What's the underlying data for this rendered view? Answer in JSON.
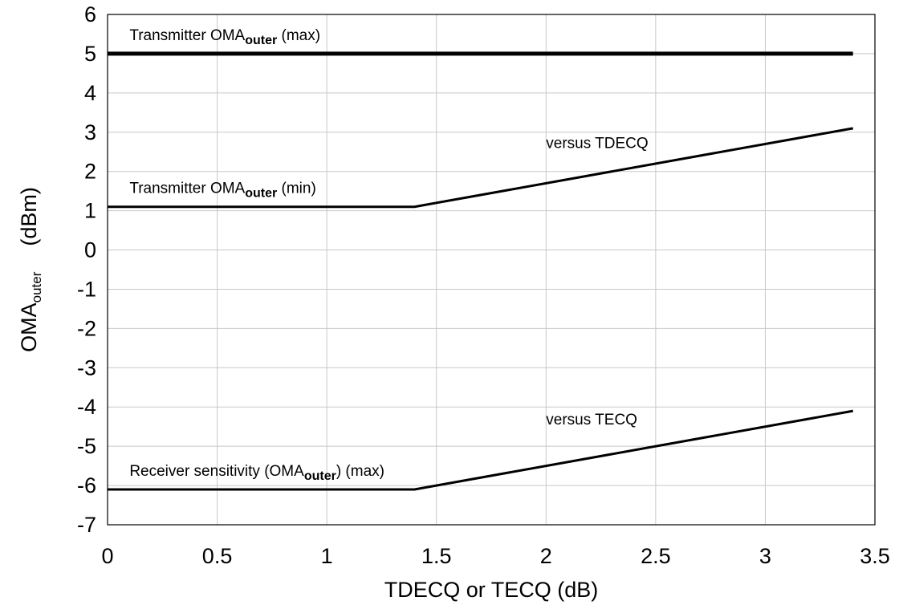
{
  "chart_data": {
    "type": "line",
    "xlabel": "TDECQ or TECQ (dB)",
    "ylabel_parts": {
      "main": "OMA",
      "sub": "outer",
      "unit": "(dBm)"
    },
    "xlim": [
      0,
      3.5
    ],
    "ylim": [
      -7,
      6
    ],
    "xticks": [
      0,
      0.5,
      1,
      1.5,
      2,
      2.5,
      3,
      3.5
    ],
    "xtick_labels": [
      "0",
      "0.5",
      "1",
      "1.5",
      "2",
      "2.5",
      "3",
      "3.5"
    ],
    "yticks": [
      -7,
      -6,
      -5,
      -4,
      -3,
      -2,
      -1,
      0,
      1,
      2,
      3,
      4,
      5,
      6
    ],
    "ytick_labels": [
      "-7",
      "-6",
      "-5",
      "-4",
      "-3",
      "-2",
      "-1",
      "0",
      "1",
      "2",
      "3",
      "4",
      "5",
      "6"
    ],
    "grid": true,
    "series": [
      {
        "id": "tx-max",
        "x": [
          0,
          3.4
        ],
        "y": [
          5,
          5
        ],
        "stroke_width": 5
      },
      {
        "id": "tx-min",
        "x": [
          0,
          1.4,
          3.4
        ],
        "y": [
          1.1,
          1.1,
          3.1
        ],
        "stroke_width": 3
      },
      {
        "id": "rx-sens",
        "x": [
          0,
          1.4,
          3.4
        ],
        "y": [
          -6.1,
          -6.1,
          -4.1
        ],
        "stroke_width": 3
      }
    ],
    "annotations": [
      {
        "id": "tx-max-label",
        "pre": "Transmitter OMA",
        "sub": "outer",
        "post": " (max)",
        "x": 0.1,
        "y": 5.35
      },
      {
        "id": "tx-min-label",
        "pre": "Transmitter OMA",
        "sub": "outer",
        "post": " (min)",
        "x": 0.1,
        "y": 1.45
      },
      {
        "id": "rx-sens-label",
        "pre": "Receiver sensitivity (OMA",
        "sub": "outer",
        "post": ") (max)",
        "x": 0.1,
        "y": -5.75
      },
      {
        "id": "versus-tdecq-label",
        "pre": "versus TDECQ",
        "sub": "",
        "post": "",
        "x": 2.0,
        "y": 2.6
      },
      {
        "id": "versus-tecq-label",
        "pre": "versus TECQ",
        "sub": "",
        "post": "",
        "x": 2.0,
        "y": -4.45
      }
    ]
  }
}
